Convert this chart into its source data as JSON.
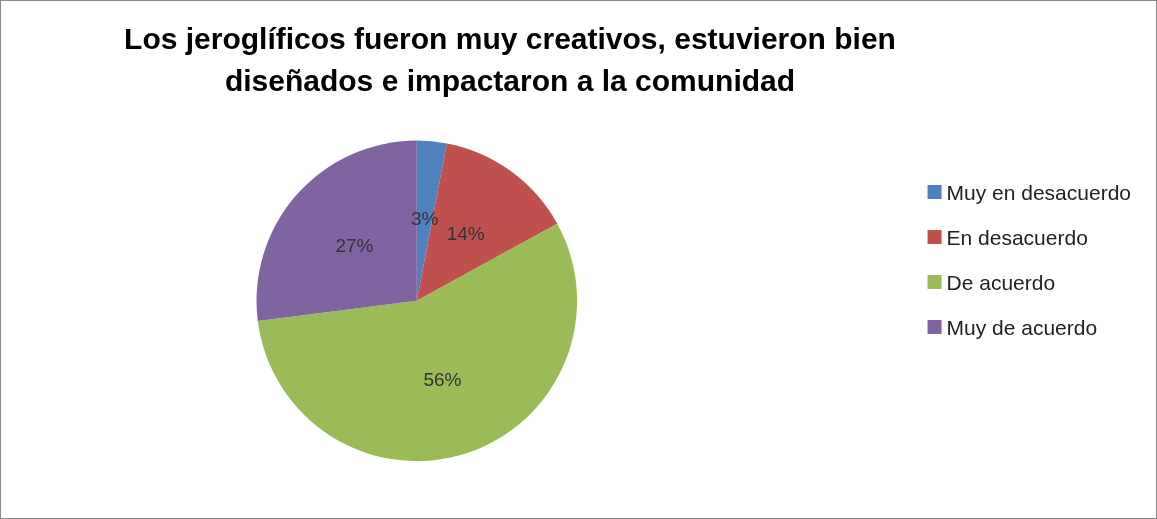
{
  "chart_data": {
    "type": "pie",
    "title": "Los jeroglíficos fueron muy creativos, estuvieron bien diseñados e impactaron a la comunidad",
    "categories": [
      "Muy en desacuerdo",
      "En desacuerdo",
      "De acuerdo",
      "Muy de acuerdo"
    ],
    "values": [
      3,
      14,
      56,
      27
    ],
    "colors": [
      "#4f81bd",
      "#c0504d",
      "#9bbb59",
      "#8064a2"
    ],
    "value_labels": [
      "3%",
      "14%",
      "56%",
      "27%"
    ],
    "legend": "right"
  }
}
